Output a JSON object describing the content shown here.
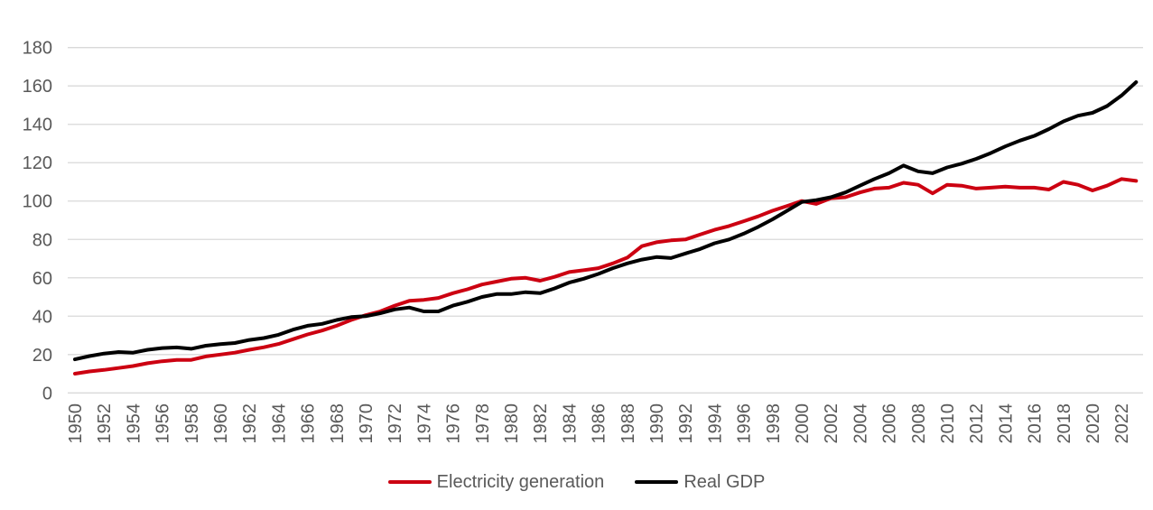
{
  "colors": {
    "background": "#FFFFFF",
    "axis_text": "#595959",
    "gridline": "#D9D9D9",
    "electricity_line": "#CC0011",
    "gdp_line": "#000000"
  },
  "chart_data": {
    "type": "line",
    "title": "",
    "xlabel": "",
    "ylabel": "",
    "grid": "horizontal",
    "legend_position": "bottom-center",
    "x_start": 1950,
    "x_end": 2023,
    "ylim": [
      0,
      180
    ],
    "y_ticks": [
      0,
      20,
      40,
      60,
      80,
      100,
      120,
      140,
      160,
      180
    ],
    "x_tick_labels": [
      "1950",
      "1952",
      "1954",
      "1956",
      "1958",
      "1960",
      "1962",
      "1964",
      "1966",
      "1968",
      "1970",
      "1972",
      "1974",
      "1976",
      "1978",
      "1980",
      "1982",
      "1984",
      "1986",
      "1988",
      "1990",
      "1992",
      "1994",
      "1996",
      "1998",
      "2000",
      "2002",
      "2004",
      "2006",
      "2008",
      "2010",
      "2012",
      "2014",
      "2016",
      "2018",
      "2020",
      "2022"
    ],
    "series": [
      {
        "name": "Electricity generation",
        "color": "#CC0011",
        "values": [
          10,
          11.2,
          12,
          13,
          14,
          15.5,
          16.5,
          17.2,
          17.2,
          19,
          20,
          21,
          22.5,
          23.8,
          25.5,
          28,
          30.5,
          32.5,
          35,
          38,
          40.5,
          42.5,
          45.5,
          48,
          48.5,
          49.5,
          52,
          54,
          56.5,
          58,
          59.5,
          60,
          58.5,
          60.5,
          63,
          64,
          65,
          67.5,
          70.5,
          76.5,
          78.5,
          79.5,
          80,
          82.5,
          85,
          87,
          89.5,
          92,
          95,
          97.5,
          100,
          98.5,
          101.5,
          102,
          104.5,
          106.5,
          107,
          109.5,
          108.5,
          104,
          108.5,
          108,
          106.5,
          107,
          107.5,
          107,
          107,
          106,
          110,
          108.5,
          105.5,
          108,
          111.5,
          110.5
        ]
      },
      {
        "name": "Real GDP",
        "color": "#000000",
        "values": [
          17.5,
          19.2,
          20.5,
          21.3,
          21,
          22.5,
          23.4,
          23.7,
          23,
          24.6,
          25.4,
          26,
          27.6,
          28.6,
          30.3,
          33,
          35,
          36,
          38,
          39.5,
          40,
          41.5,
          43.5,
          44.5,
          42.5,
          42.5,
          45.5,
          47.5,
          50,
          51.5,
          51.5,
          52.5,
          52,
          54.5,
          57.5,
          59.5,
          62,
          65,
          67.5,
          69.5,
          70.8,
          70.3,
          72.7,
          75,
          78,
          80,
          83,
          86.5,
          90.5,
          95,
          99.5,
          100.5,
          102,
          104.5,
          108,
          111.5,
          114.5,
          118.5,
          115.5,
          114.5,
          117.5,
          119.5,
          122,
          125,
          128.5,
          131.5,
          134,
          137.5,
          141.5,
          144.5,
          146,
          149.5,
          155,
          162
        ]
      }
    ]
  }
}
